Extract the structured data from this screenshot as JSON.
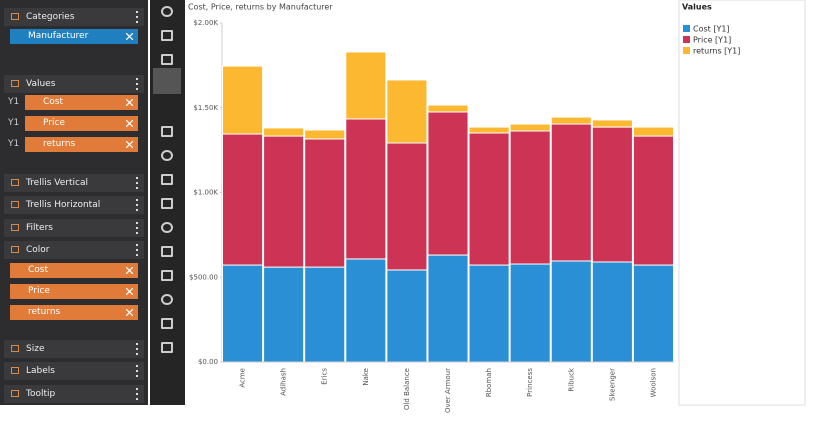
{
  "panel": {
    "categories": {
      "title": "Categories",
      "items": [
        "Manufacturer"
      ]
    },
    "values": {
      "title": "Values",
      "axis": "Y1",
      "items": [
        "Cost",
        "Price",
        "returns"
      ]
    },
    "trellis_vertical": "Trellis Vertical",
    "trellis_horizontal": "Trellis Horizontal",
    "filters": "Filters",
    "color": {
      "title": "Color",
      "items": [
        "Cost",
        "Price",
        "returns"
      ]
    },
    "size": "Size",
    "labels": "Labels",
    "tooltip": "Tooltip"
  },
  "chart_data": {
    "type": "stacked_bar",
    "title": "Cost, Price, returns by Manufacturer",
    "legend_title": "Values",
    "categories": [
      "Acme",
      "Adihash",
      "Erics",
      "Nake",
      "Old Balance",
      "Over Armour",
      "Rbomah",
      "Princess",
      "Ribuck",
      "Skeenger",
      "Woolson"
    ],
    "series": [
      {
        "name": "Cost [Y1]",
        "color": "#2b8fd6",
        "values": [
          572,
          560,
          560,
          608,
          543,
          631,
          572,
          578,
          596,
          590,
          572
        ]
      },
      {
        "name": "Price [Y1]",
        "color": "#cc3355",
        "values": [
          773,
          773,
          756,
          826,
          749,
          844,
          779,
          785,
          808,
          796,
          761
        ]
      },
      {
        "name": "returns [Y1]",
        "color": "#fbb830",
        "values": [
          401,
          48,
          53,
          395,
          372,
          41,
          35,
          41,
          41,
          42,
          53
        ]
      }
    ],
    "ylim": [
      0,
      2000
    ],
    "yticks": [
      {
        "value": 0,
        "label": "$0.00"
      },
      {
        "value": 500,
        "label": "$500.00"
      },
      {
        "value": 1000,
        "label": "$1.00K"
      },
      {
        "value": 1500,
        "label": "$1.50K"
      },
      {
        "value": 2000,
        "label": "$2.00K"
      }
    ]
  }
}
